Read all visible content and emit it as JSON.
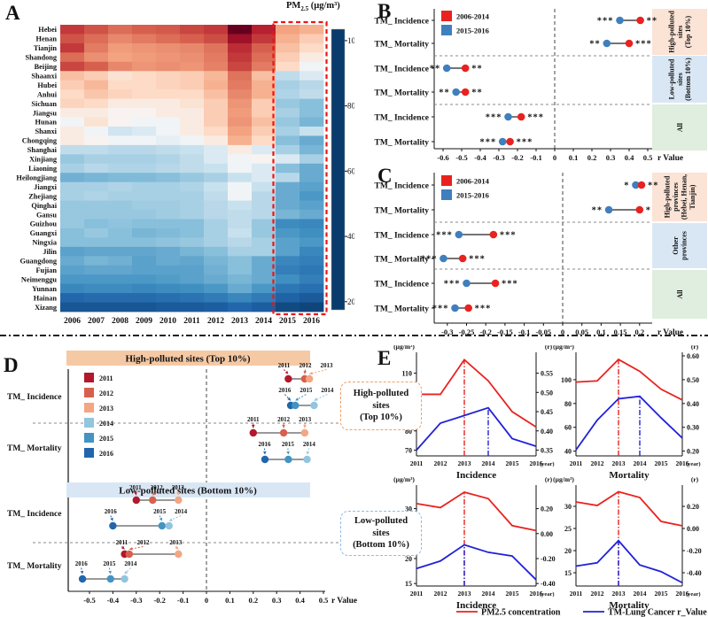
{
  "colors": {
    "period_red": "#e8231f",
    "period_blue": "#3f7fbe",
    "band_peach": "#fbe3d6",
    "band_blue": "#d9e7f5",
    "band_green": "#dfeede",
    "header_peach": "#f5c9a4",
    "header_blue": "#d9e7f5",
    "highlight_red": "#ee1414",
    "line_red": "#e8231f",
    "line_blue": "#2121d8"
  },
  "chart_data": [
    {
      "panel": "A",
      "type": "heatmap",
      "title_prefix": "PM",
      "title_sub": "2.5",
      "title_suffix": " (µg/m³)",
      "years": [
        "2006",
        "2007",
        "2008",
        "2009",
        "2010",
        "2011",
        "2012",
        "2013",
        "2014",
        "2015",
        "2016"
      ],
      "provinces": [
        "Hebei",
        "Henan",
        "Tianjin",
        "Shandong",
        "Beijing",
        "Shaanxi",
        "Hubei",
        "Anhui",
        "Sichuan",
        "Jiangsu",
        "Hunan",
        "Shanxi",
        "Chongqing",
        "Shanghai",
        "Xinjiang",
        "Liaoning",
        "Heilongjiang",
        "Jiangxi",
        "Zhejiang",
        "Qinghai",
        "Gansu",
        "Guizhou",
        "Guangxi",
        "Ningxia",
        "Jilin",
        "Guangdong",
        "Fujian",
        "Neimenggu",
        "Yunnan",
        "Hainan",
        "Xizang"
      ],
      "values": [
        [
          88,
          84,
          80,
          82,
          83,
          86,
          88,
          106,
          92,
          72,
          70
        ],
        [
          84,
          80,
          76,
          78,
          80,
          82,
          85,
          96,
          88,
          70,
          66
        ],
        [
          88,
          78,
          73,
          74,
          75,
          76,
          79,
          90,
          82,
          68,
          64
        ],
        [
          80,
          75,
          72,
          73,
          74,
          75,
          78,
          88,
          80,
          66,
          62
        ],
        [
          86,
          82,
          76,
          74,
          75,
          74,
          77,
          86,
          78,
          64,
          60
        ],
        [
          68,
          66,
          63,
          64,
          65,
          66,
          69,
          79,
          68,
          55,
          58
        ],
        [
          66,
          69,
          64,
          64,
          65,
          66,
          70,
          78,
          70,
          52,
          54
        ],
        [
          64,
          67,
          65,
          64,
          64,
          64,
          68,
          76,
          70,
          53,
          55
        ],
        [
          65,
          64,
          62,
          62,
          62,
          63,
          66,
          74,
          66,
          50,
          48
        ],
        [
          62,
          62,
          61,
          61,
          62,
          62,
          66,
          73,
          66,
          52,
          48
        ],
        [
          60,
          63,
          61,
          60,
          60,
          62,
          66,
          74,
          68,
          50,
          46
        ],
        [
          62,
          60,
          57,
          58,
          60,
          62,
          64,
          72,
          66,
          52,
          56
        ],
        [
          62,
          61,
          60,
          60,
          59,
          60,
          62,
          70,
          64,
          48,
          44
        ],
        [
          55,
          55,
          54,
          54,
          55,
          56,
          58,
          62,
          58,
          52,
          46
        ],
        [
          50,
          52,
          52,
          52,
          53,
          55,
          58,
          60,
          61,
          58,
          52
        ],
        [
          52,
          54,
          53,
          53,
          54,
          55,
          56,
          60,
          58,
          48,
          44
        ],
        [
          45,
          46,
          47,
          47,
          48,
          50,
          52,
          56,
          58,
          54,
          44
        ],
        [
          52,
          52,
          53,
          52,
          52,
          53,
          56,
          60,
          56,
          44,
          42
        ],
        [
          52,
          53,
          52,
          52,
          52,
          52,
          55,
          60,
          54,
          44,
          40
        ],
        [
          50,
          50,
          50,
          51,
          51,
          52,
          54,
          56,
          54,
          44,
          42
        ],
        [
          50,
          50,
          50,
          50,
          51,
          52,
          54,
          55,
          54,
          46,
          44
        ],
        [
          50,
          48,
          49,
          48,
          48,
          48,
          52,
          55,
          50,
          37,
          36
        ],
        [
          48,
          50,
          48,
          46,
          47,
          48,
          52,
          56,
          50,
          40,
          38
        ],
        [
          48,
          48,
          48,
          48,
          49,
          50,
          52,
          54,
          52,
          42,
          40
        ],
        [
          42,
          43,
          43,
          43,
          44,
          46,
          48,
          52,
          52,
          42,
          36
        ],
        [
          44,
          46,
          45,
          42,
          44,
          43,
          46,
          48,
          44,
          36,
          34
        ],
        [
          42,
          43,
          43,
          42,
          42,
          42,
          45,
          48,
          44,
          34,
          32
        ],
        [
          40,
          40,
          40,
          40,
          41,
          42,
          44,
          46,
          44,
          38,
          34
        ],
        [
          36,
          37,
          37,
          36,
          37,
          38,
          40,
          44,
          40,
          32,
          30
        ],
        [
          28,
          29,
          29,
          29,
          30,
          31,
          33,
          36,
          33,
          27,
          25
        ],
        [
          24,
          24,
          24,
          24,
          25,
          25,
          26,
          28,
          26,
          21,
          20
        ]
      ],
      "value_range": [
        17.5,
        103.5
      ],
      "colorbar_ticks": [
        100,
        80,
        60,
        40,
        20
      ],
      "highlight_years": [
        "2015",
        "2016"
      ]
    },
    {
      "panel": "B",
      "type": "forest",
      "legend": [
        {
          "label": "2006-2014",
          "color": "#e8231f"
        },
        {
          "label": "2015-2016",
          "color": "#3f7fbe"
        }
      ],
      "xlabel": "r Value",
      "xticks": [
        -0.6,
        -0.5,
        -0.4,
        -0.3,
        -0.2,
        -0.1,
        0,
        0.1,
        0.2,
        0.3,
        0.4,
        0.5
      ],
      "groups": [
        {
          "band": [
            "High-polluted",
            "sites",
            "(Top 10%)"
          ],
          "band_color": "#fbe3d6",
          "rows": [
            {
              "label": "TM_ Incidence",
              "blue": 0.35,
              "red": 0.46,
              "sig_left": "***",
              "sig_right": "**"
            },
            {
              "label": "TM_ Mortality",
              "blue": 0.28,
              "red": 0.4,
              "sig_left": "**",
              "sig_right": "***"
            }
          ]
        },
        {
          "band": [
            "Low-polluted",
            "sites",
            "(Bottom 10%)"
          ],
          "band_color": "#d9e7f5",
          "rows": [
            {
              "label": "TM_ Incidence",
              "blue": -0.58,
              "red": -0.48,
              "sig_left": "**",
              "sig_right": "**"
            },
            {
              "label": "TM_ Mortality",
              "blue": -0.53,
              "red": -0.48,
              "sig_left": "**",
              "sig_right": "**"
            }
          ]
        },
        {
          "band": [
            "All"
          ],
          "band_color": "#dfeede",
          "rows": [
            {
              "label": "TM_ Incidence",
              "blue": -0.25,
              "red": -0.18,
              "sig_left": "***",
              "sig_right": "***"
            },
            {
              "label": "TM_ Mortality",
              "blue": -0.28,
              "red": -0.24,
              "sig_left": "***",
              "sig_right": "***"
            }
          ]
        }
      ]
    },
    {
      "panel": "C",
      "type": "forest",
      "legend": [
        {
          "label": "2006-2014",
          "color": "#e8231f"
        },
        {
          "label": "2015-2016",
          "color": "#3f7fbe"
        }
      ],
      "xlabel": "r Value",
      "xticks": [
        -0.3,
        -0.25,
        -0.2,
        -0.15,
        -0.1,
        -0.05,
        0,
        0.05,
        0.1,
        0.15,
        0.2
      ],
      "groups": [
        {
          "band": [
            "High-polluted",
            "provinces",
            "(Hebei, Henan,",
            "Tianjin)"
          ],
          "band_color": "#fbe3d6",
          "rows": [
            {
              "label": "TM_ Incidence",
              "blue": 0.19,
              "red": 0.205,
              "sig_left": "*",
              "sig_right": "**"
            },
            {
              "label": "TM_ Mortality",
              "blue": 0.12,
              "red": 0.2,
              "sig_left": "**",
              "sig_right": "*"
            }
          ]
        },
        {
          "band": [
            "Other",
            "provinces"
          ],
          "band_color": "#d9e7f5",
          "rows": [
            {
              "label": "TM_ Incidence",
              "blue": -0.27,
              "red": -0.18,
              "sig_left": "***",
              "sig_right": "***"
            },
            {
              "label": "TM_ Mortality",
              "blue": -0.31,
              "red": -0.26,
              "sig_left": "***",
              "sig_right": "***"
            }
          ]
        },
        {
          "band": [
            "All"
          ],
          "band_color": "#dfeede",
          "rows": [
            {
              "label": "TM_ Incidence",
              "blue": -0.25,
              "red": -0.175,
              "sig_left": "***",
              "sig_right": "***"
            },
            {
              "label": "TM_ Mortality",
              "blue": -0.28,
              "red": -0.245,
              "sig_left": "***",
              "sig_right": "***"
            }
          ]
        }
      ]
    },
    {
      "panel": "D",
      "type": "dot-cluster",
      "xlabel": "r Value",
      "xticks": [
        -0.5,
        -0.4,
        -0.3,
        -0.2,
        -0.1,
        0,
        0.1,
        0.2,
        0.3,
        0.4,
        0.5
      ],
      "legend": [
        {
          "year": "2011",
          "color": "#b2182b"
        },
        {
          "year": "2012",
          "color": "#d6604d"
        },
        {
          "year": "2013",
          "color": "#f4a582"
        },
        {
          "year": "2014",
          "color": "#92c5de"
        },
        {
          "year": "2015",
          "color": "#4393c3"
        },
        {
          "year": "2016",
          "color": "#2166ac"
        }
      ],
      "sections": [
        {
          "header": "High-polluted sites (Top 10%)",
          "header_color": "#f5c9a4",
          "rows": [
            {
              "label": "TM_ Incidence",
              "red_cluster": {
                "years": [
                  "2011",
                  "2012",
                  "2013"
                ],
                "values": [
                  0.35,
                  0.42,
                  0.44
                ]
              },
              "blue_cluster": {
                "years": [
                  "2016",
                  "2015",
                  "2014"
                ],
                "values": [
                  0.36,
                  0.38,
                  0.46
                ]
              }
            },
            {
              "label": "TM_ Mortality",
              "red_cluster": {
                "years": [
                  "2011",
                  "2012",
                  "2013"
                ],
                "values": [
                  0.2,
                  0.33,
                  0.42
                ]
              },
              "blue_cluster": {
                "years": [
                  "2016",
                  "2015",
                  "2014"
                ],
                "values": [
                  0.25,
                  0.35,
                  0.43
                ]
              }
            }
          ]
        },
        {
          "header": "Low-polluted sites (Bottom 10%)",
          "header_color": "#d9e7f5",
          "rows": [
            {
              "label": "TM_ Incidence",
              "red_cluster": {
                "years": [
                  "2011",
                  "2012",
                  "2013"
                ],
                "values": [
                  -0.3,
                  -0.23,
                  -0.12
                ]
              },
              "blue_cluster": {
                "years": [
                  "2016",
                  "2015",
                  "2014"
                ],
                "values": [
                  -0.4,
                  -0.19,
                  -0.16
                ]
              }
            },
            {
              "label": "TM_ Mortality",
              "red_cluster": {
                "years": [
                  "2011",
                  "2012",
                  "2013"
                ],
                "values": [
                  -0.35,
                  -0.33,
                  -0.12
                ]
              },
              "blue_cluster": {
                "years": [
                  "2016",
                  "2015",
                  "2014"
                ],
                "values": [
                  -0.53,
                  -0.41,
                  -0.35
                ]
              }
            }
          ]
        }
      ]
    },
    {
      "panel": "E",
      "type": "line",
      "years": [
        "2011",
        "2012",
        "2013",
        "2014",
        "2015",
        "2016"
      ],
      "year_suffix": "(year)",
      "row_labels": [
        {
          "lines": [
            "High-polluted",
            "sites",
            "(Top 10%)"
          ],
          "border_color": "#f0a066"
        },
        {
          "lines": [
            "Low-polluted",
            "sites",
            "(Bottom 10%)"
          ],
          "border_color": "#8fbce6"
        }
      ],
      "charts": [
        {
          "xlabel": "Incidence",
          "left_unit": "(µg/m³)",
          "right_unit": "(r)",
          "left_ticks": [
            70,
            80,
            90,
            100,
            110
          ],
          "left_range": [
            67,
            119
          ],
          "right_ticks": [
            0.55,
            0.5,
            0.45,
            0.4,
            0.35
          ],
          "right_range": [
            0.335,
            0.595
          ],
          "pm25": [
            99,
            99,
            117,
            106,
            90,
            82
          ],
          "r_value": [
            0.35,
            0.42,
            0.44,
            0.46,
            0.38,
            0.36
          ],
          "vline_red": "2013",
          "vline_blue": "2014"
        },
        {
          "xlabel": "Mortality",
          "left_unit": "(µg/m³)",
          "right_unit": "(r)",
          "left_ticks": [
            100,
            80,
            60,
            40
          ],
          "left_range": [
            36,
            120
          ],
          "right_ticks": [
            0.6,
            0.5,
            0.4,
            0.3,
            0.2
          ],
          "right_range": [
            0.18,
            0.6
          ],
          "pm25": [
            98,
            99,
            117,
            107,
            92,
            83
          ],
          "r_value": [
            0.205,
            0.33,
            0.42,
            0.43,
            0.34,
            0.255
          ],
          "vline_red": "2013",
          "vline_blue": "2014"
        },
        {
          "xlabel": "Incidence",
          "left_unit": "(µg/m³)",
          "right_unit": "(r)",
          "left_ticks": [
            30,
            25,
            20,
            15
          ],
          "left_range": [
            14.5,
            34
          ],
          "right_ticks": [
            0.2,
            0.0,
            -0.2,
            -0.4
          ],
          "right_range": [
            -0.42,
            0.36
          ],
          "pm25": [
            31,
            30.2,
            33.3,
            32,
            26.6,
            25.6
          ],
          "r_value": [
            -0.28,
            -0.22,
            -0.09,
            -0.15,
            -0.18,
            -0.37
          ],
          "vline_red": "2013",
          "vline_blue": "2013"
        },
        {
          "xlabel": "Mortality",
          "left_unit": "(µg/m³)",
          "right_unit": "(r)",
          "left_ticks": [
            30,
            25,
            20,
            15
          ],
          "left_range": [
            12,
            34
          ],
          "right_ticks": [
            0.2,
            0.0,
            -0.2,
            -0.4
          ],
          "right_range": [
            -0.52,
            0.36
          ],
          "pm25": [
            31,
            30.2,
            33.3,
            32,
            26.6,
            25.6
          ],
          "r_value": [
            -0.34,
            -0.31,
            -0.11,
            -0.33,
            -0.39,
            -0.49
          ],
          "vline_red": "2013",
          "vline_blue": "2013"
        }
      ],
      "legend": [
        {
          "label": "PM2.5 concentration",
          "color": "#e8231f"
        },
        {
          "label": "TM-Lung Cancer r_Value",
          "color": "#2121d8"
        }
      ]
    }
  ]
}
